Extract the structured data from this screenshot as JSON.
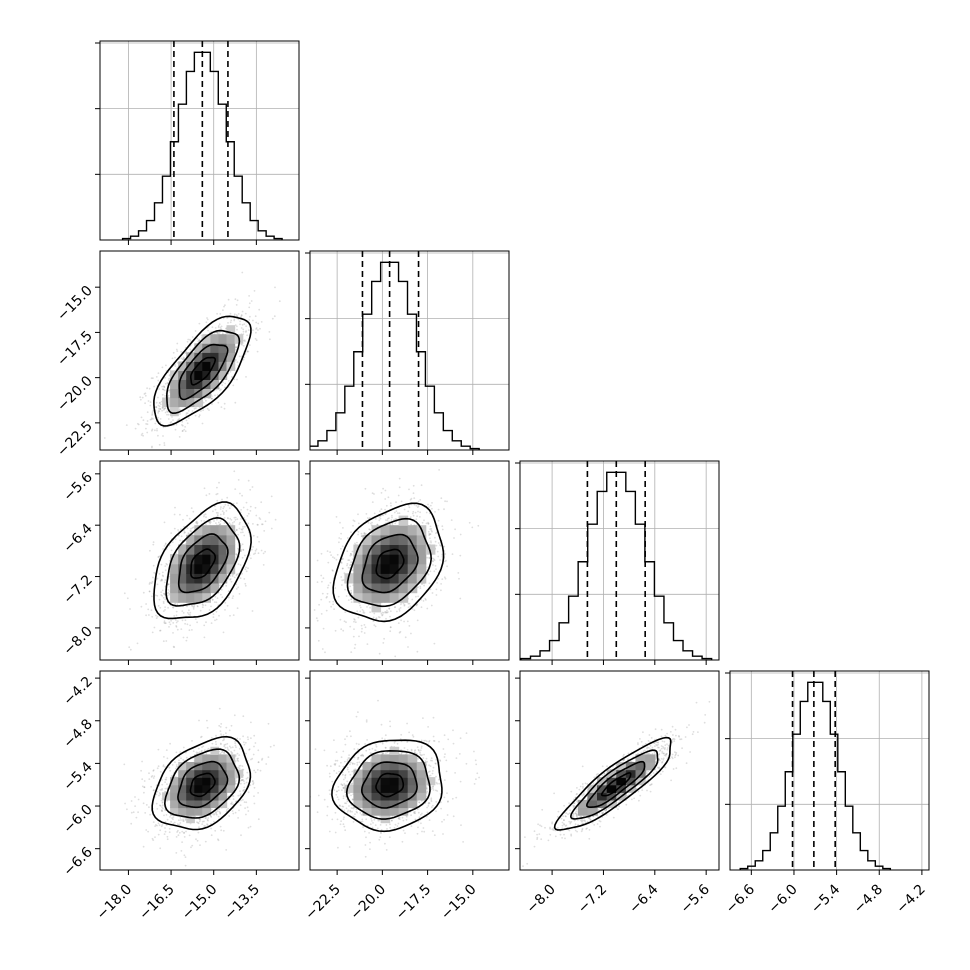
{
  "chart_data": {
    "type": "corner",
    "parameters": [
      {
        "mean": -15.4,
        "sd": 0.85,
        "range": [
          -19.0,
          -12.0
        ],
        "ticks": [
          -18.0,
          -16.5,
          -15.0,
          -13.5
        ],
        "tick_labels": [
          "−18.0",
          "−16.5",
          "−15.0",
          "−13.5"
        ],
        "quantiles": [
          -16.4,
          -15.4,
          -14.5
        ]
      },
      {
        "mean": -19.6,
        "sd": 1.5,
        "range": [
          -24.0,
          -13.0
        ],
        "ticks": [
          -22.5,
          -20.0,
          -17.5,
          -15.0
        ],
        "tick_labels": [
          "−22.5",
          "−20.0",
          "−17.5",
          "−15.0"
        ],
        "quantiles": [
          -21.1,
          -19.6,
          -18.0
        ]
      },
      {
        "mean": -7.0,
        "sd": 0.45,
        "range": [
          -8.5,
          -5.4
        ],
        "ticks": [
          -8.0,
          -7.2,
          -6.4,
          -5.6
        ],
        "tick_labels": [
          "−8.0",
          "−7.2",
          "−6.4",
          "−5.6"
        ],
        "quantiles": [
          -7.45,
          -7.0,
          -6.55
        ]
      },
      {
        "mean": -5.7,
        "sd": 0.32,
        "range": [
          -6.9,
          -4.1
        ],
        "ticks": [
          -6.6,
          -6.0,
          -5.4,
          -4.8,
          -4.2
        ],
        "tick_labels": [
          "−6.6",
          "−6.0",
          "−5.4",
          "−4.8",
          "−4.2"
        ],
        "quantiles": [
          -6.02,
          -5.72,
          -5.42
        ]
      }
    ],
    "y_axis_ticks": {
      "1": {
        "ticks": [
          -15.0,
          -17.5,
          -20.0,
          -22.5
        ],
        "tick_labels": [
          "−15.0",
          "−17.5",
          "−20.0",
          "−22.5"
        ]
      },
      "2": {
        "ticks": [
          -5.6,
          -6.4,
          -7.2,
          -8.0
        ],
        "tick_labels": [
          "−5.6",
          "−6.4",
          "−7.2",
          "−8.0"
        ]
      },
      "3": {
        "ticks": [
          -4.2,
          -4.8,
          -5.4,
          -6.0,
          -6.6
        ],
        "tick_labels": [
          "−4.2",
          "−4.8",
          "−5.4",
          "−6.0",
          "−6.6"
        ]
      }
    },
    "correlations": {
      "1-0": 0.7,
      "2-0": 0.45,
      "2-1": 0.3,
      "3-0": 0.35,
      "3-1": 0.12,
      "3-2": 0.88
    },
    "histogram_bins": 20,
    "grid": true,
    "quantile_levels": [
      0.16,
      0.5,
      0.84
    ],
    "contour_levels_sigma": [
      0.5,
      1.0,
      1.5,
      2.0
    ]
  }
}
